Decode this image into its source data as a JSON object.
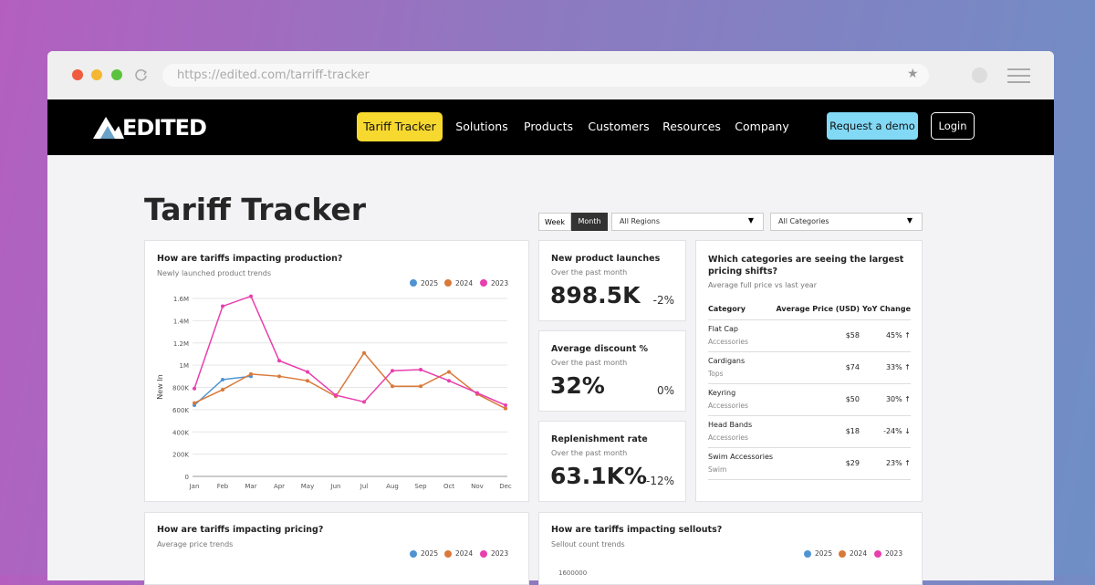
{
  "browser": {
    "url": "https://edited.com/tarriff-tracker"
  },
  "nav": {
    "logo": "EDITED",
    "active": "Tariff Tracker",
    "items": [
      "Solutions",
      "Products",
      "Customers",
      "Resources",
      "Company"
    ],
    "cta": "Request a demo",
    "login": "Login"
  },
  "page": {
    "title": "Tariff Tracker",
    "toggle": [
      "Week",
      "Month"
    ],
    "filters": [
      "All Regions",
      "All Categories"
    ]
  },
  "chart_data": {
    "type": "line",
    "title": "How are tariffs impacting production?",
    "subtitle": "Newly launched product trends",
    "y_label": "New In",
    "categories": [
      "Jan",
      "Feb",
      "Mar",
      "Apr",
      "May",
      "Jun",
      "Jul",
      "Aug",
      "Sep",
      "Oct",
      "Nov",
      "Dec"
    ],
    "series": [
      {
        "name": "2025",
        "color": "#4f93d2",
        "values": [
          640000,
          870000,
          900000,
          null,
          null,
          null,
          null,
          null,
          null,
          null,
          null,
          null
        ]
      },
      {
        "name": "2024",
        "color": "#d9793a",
        "values": [
          660000,
          780000,
          920000,
          900000,
          860000,
          720000,
          1110000,
          810000,
          810000,
          940000,
          740000,
          610000
        ]
      },
      {
        "name": "2023",
        "color": "#e83fae",
        "values": [
          790000,
          1530000,
          1620000,
          1040000,
          940000,
          730000,
          670000,
          950000,
          960000,
          860000,
          750000,
          640000
        ]
      }
    ],
    "ylim": [
      0,
      1600000
    ],
    "yticks": [
      0,
      {
        "value": 200000,
        "label": "200K"
      },
      {
        "value": 400000,
        "label": "400K"
      },
      {
        "value": 600000,
        "label": "600K"
      },
      {
        "value": 800000,
        "label": "800K"
      },
      {
        "value": 1000000,
        "label": "1M"
      },
      {
        "value": 1200000,
        "label": "1.2M"
      },
      {
        "value": 1400000,
        "label": "1.4M"
      },
      {
        "value": 1600000,
        "label": "1.6M"
      }
    ],
    "grid": true
  },
  "metrics": [
    {
      "title": "New product launches",
      "subtitle": "Over the past month",
      "value": "898.5K",
      "change": "-2%"
    },
    {
      "title": "Average discount %",
      "subtitle": "Over the past month",
      "value": "32%",
      "change": "0%"
    },
    {
      "title": "Replenishment rate",
      "subtitle": "Over the past month",
      "value": "63.1K%",
      "change": "-12%"
    }
  ],
  "table": {
    "title": "Which categories are seeing the largest pricing shifts?",
    "subtitle": "Average full price vs last year",
    "columns": [
      "Category",
      "Average Price (USD)",
      "YoY Change"
    ],
    "rows": [
      [
        "Flat Cap",
        "Accessories",
        "$58",
        "45% ↑"
      ],
      [
        "Cardigans",
        "Tops",
        "$74",
        "33% ↑"
      ],
      [
        "Keyring",
        "Accessories",
        "$50",
        "30% ↑"
      ],
      [
        "Head Bands",
        "Accessories",
        "$18",
        "-24% ↓"
      ],
      [
        "Swim Accessories",
        "Swim",
        "$29",
        "23% ↑"
      ]
    ]
  },
  "pricing": {
    "title": "How are tariffs impacting pricing?",
    "subtitle": "Average price trends",
    "legend": [
      "2025",
      "2024",
      "2023"
    ]
  },
  "sellouts": {
    "title": "How are tariffs impacting sellouts?",
    "subtitle": "Sellout count trends",
    "legend": [
      "2025",
      "2024",
      "2023"
    ],
    "top_tick": "1600000"
  }
}
